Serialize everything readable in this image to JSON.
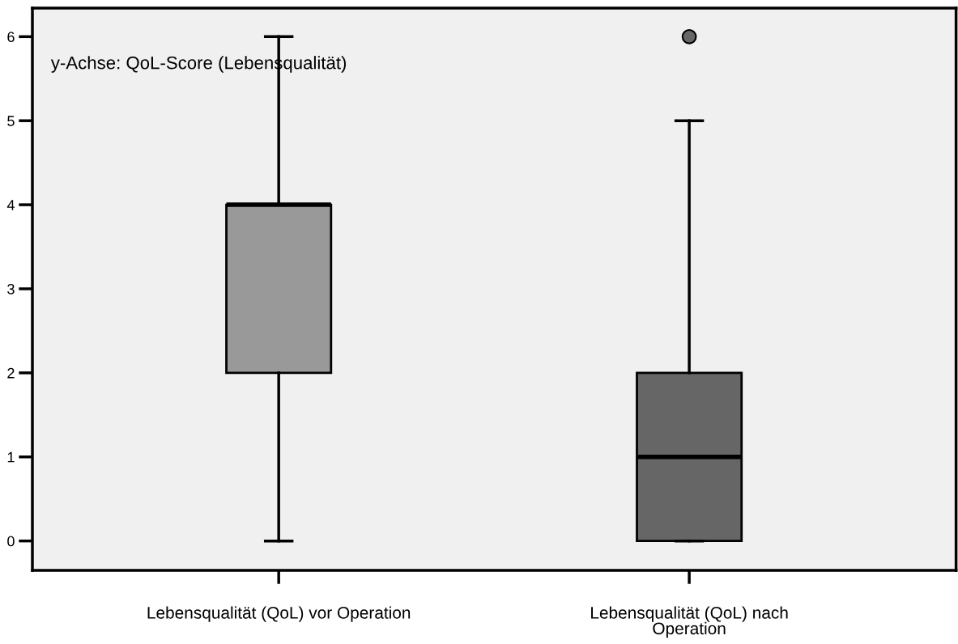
{
  "chart_data": {
    "type": "box",
    "categories": [
      "Lebensqualität (QoL) vor Operation",
      "Lebensqualität (QoL) nach\nOperation"
    ],
    "boxes": [
      {
        "low": 0,
        "q1": 2,
        "median": 4,
        "q3": 4,
        "high": 6
      },
      {
        "low": 0,
        "q1": 0,
        "median": 1,
        "q3": 2,
        "high": 5,
        "outliers": [
          6
        ]
      }
    ],
    "colors": [
      "#999999",
      "#666666"
    ],
    "ylim": [
      -0.35,
      6.34
    ],
    "yticks": [
      0,
      1,
      2,
      3,
      4,
      5,
      6
    ],
    "annotations": [
      "y-Achse: QoL-Score (Lebensqualität)"
    ],
    "grid": false,
    "legend": false
  }
}
